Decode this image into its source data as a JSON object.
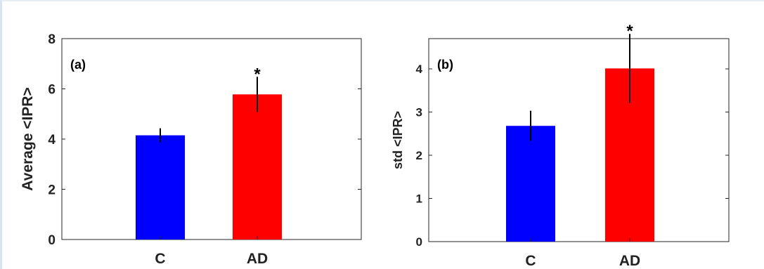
{
  "chart_data": [
    {
      "type": "bar",
      "panel_label": "(a)",
      "categories": [
        "C",
        "AD"
      ],
      "values": [
        4.15,
        5.78
      ],
      "errors": [
        0.28,
        0.7
      ],
      "significance": [
        "",
        "*"
      ],
      "colors": [
        "#0000ff",
        "#ff0000"
      ],
      "xlabel": "",
      "ylabel": "Average <IPR>",
      "ylim": [
        0,
        8
      ],
      "yticks": [
        0,
        2,
        4,
        6,
        8
      ],
      "grid": false
    },
    {
      "type": "bar",
      "panel_label": "(b)",
      "categories": [
        "C",
        "AD"
      ],
      "values": [
        2.68,
        4.01
      ],
      "errors": [
        0.35,
        0.8
      ],
      "significance": [
        "",
        "*"
      ],
      "colors": [
        "#0000ff",
        "#ff0000"
      ],
      "xlabel": "",
      "ylabel": "std <IPR>",
      "ylim": [
        0,
        4.7
      ],
      "yticks": [
        0,
        1,
        2,
        3,
        4
      ],
      "grid": false
    }
  ]
}
